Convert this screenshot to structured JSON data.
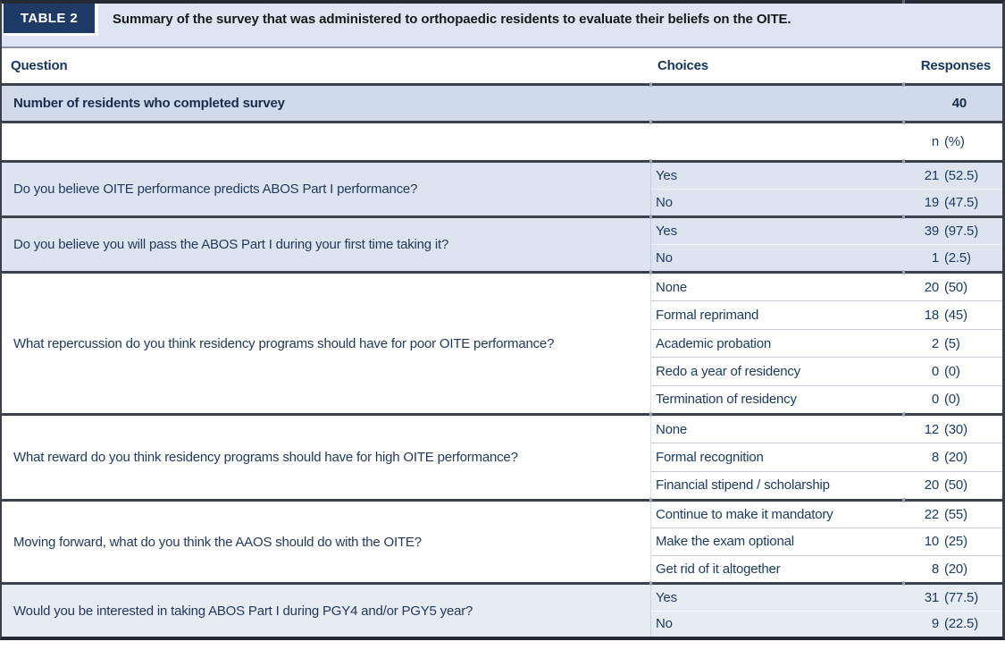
{
  "header": {
    "tag": "TABLE 2",
    "title": "Summary of the survey that was administered to orthopaedic residents to evaluate their beliefs on the OITE."
  },
  "columns": {
    "question": "Question",
    "choices": "Choices",
    "responses": "Responses"
  },
  "summary_row": {
    "label": "Number of residents who completed survey",
    "value": "40"
  },
  "unit_row": {
    "n": "n",
    "pct": "(%)"
  },
  "questions": [
    {
      "question": "Do you believe OITE performance predicts ABOS Part I performance?",
      "shaded": true,
      "choices": [
        {
          "label": "Yes",
          "n": "21",
          "pct": "(52.5)"
        },
        {
          "label": "No",
          "n": "19",
          "pct": "(47.5)"
        }
      ]
    },
    {
      "question": "Do you believe you will pass the ABOS Part I during your first time taking it?",
      "shaded": true,
      "choices": [
        {
          "label": "Yes",
          "n": "39",
          "pct": "(97.5)"
        },
        {
          "label": "No",
          "n": "1",
          "pct": "(2.5)"
        }
      ]
    },
    {
      "question": "What repercussion do you think residency programs should have for poor OITE performance?",
      "shaded": false,
      "choices": [
        {
          "label": "None",
          "n": "20",
          "pct": "(50)"
        },
        {
          "label": "Formal reprimand",
          "n": "18",
          "pct": "(45)"
        },
        {
          "label": "Academic probation",
          "n": "2",
          "pct": "(5)"
        },
        {
          "label": "Redo a year of residency",
          "n": "0",
          "pct": "(0)"
        },
        {
          "label": "Termination of residency",
          "n": "0",
          "pct": "(0)"
        }
      ]
    },
    {
      "question": "What reward do you think residency programs should have for high OITE performance?",
      "shaded": false,
      "choices": [
        {
          "label": "None",
          "n": "12",
          "pct": "(30)"
        },
        {
          "label": "Formal recognition",
          "n": "8",
          "pct": "(20)"
        },
        {
          "label": "Financial stipend / scholarship",
          "n": "20",
          "pct": "(50)"
        }
      ]
    },
    {
      "question": "Moving forward, what do you think the AAOS should do with the OITE?",
      "shaded": false,
      "choices": [
        {
          "label": "Continue to make it mandatory",
          "n": "22",
          "pct": "(55)"
        },
        {
          "label": "Make the exam optional",
          "n": "10",
          "pct": "(25)"
        },
        {
          "label": "Get rid of it altogether",
          "n": "8",
          "pct": "(20)"
        }
      ]
    },
    {
      "question": "Would you be interested in taking ABOS Part I during PGY4 and/or PGY5 year?",
      "shaded": true,
      "choices": [
        {
          "label": "Yes",
          "n": "31",
          "pct": "(77.5)"
        },
        {
          "label": "No",
          "n": "9",
          "pct": "(22.5)"
        }
      ]
    }
  ],
  "colors": {
    "badge_navy": "#1e3a67",
    "band_blue": "#dce5f1",
    "shaded_row_blue": "#dce4f0",
    "shaded_row_blue_light": "#e6ebf4",
    "summary_row_blue": "#cfdaea",
    "text_navy": "#1d3c62",
    "rule_dark": "#3b424c"
  }
}
